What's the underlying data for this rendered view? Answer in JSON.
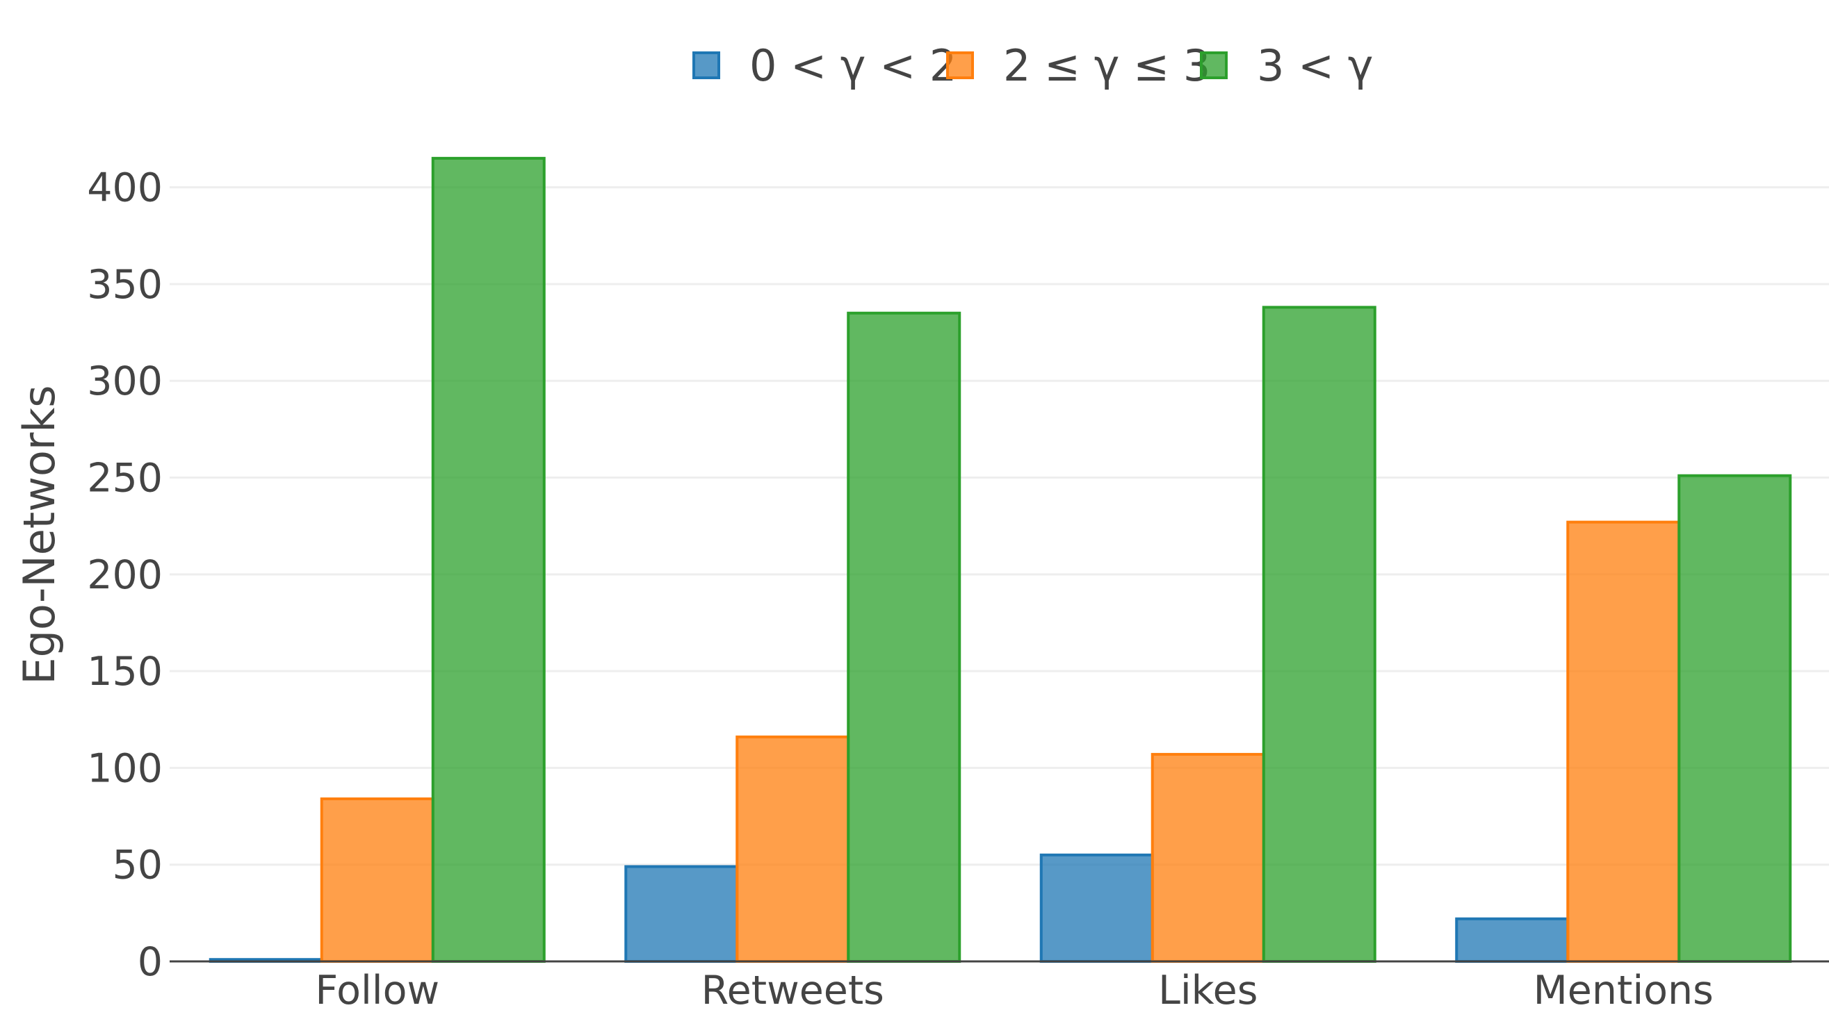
{
  "chart_data": {
    "type": "bar",
    "title": "",
    "xlabel": "",
    "ylabel": "Ego-Networks",
    "ylim": [
      0,
      425
    ],
    "yticks": [
      0,
      50,
      100,
      150,
      200,
      250,
      300,
      350,
      400
    ],
    "categories": [
      "Follow",
      "Retweets",
      "Likes",
      "Mentions"
    ],
    "series": [
      {
        "name": "0 < γ < 2",
        "color": "#1f77b4",
        "values": [
          1,
          49,
          55,
          22
        ]
      },
      {
        "name": "2 ≤ γ ≤ 3",
        "color": "#ff7f0e",
        "values": [
          84,
          116,
          107,
          227
        ]
      },
      {
        "name": "3 < γ",
        "color": "#2ca02c",
        "values": [
          415,
          335,
          338,
          251
        ]
      }
    ],
    "grid": true,
    "legend_position": "top-center"
  }
}
